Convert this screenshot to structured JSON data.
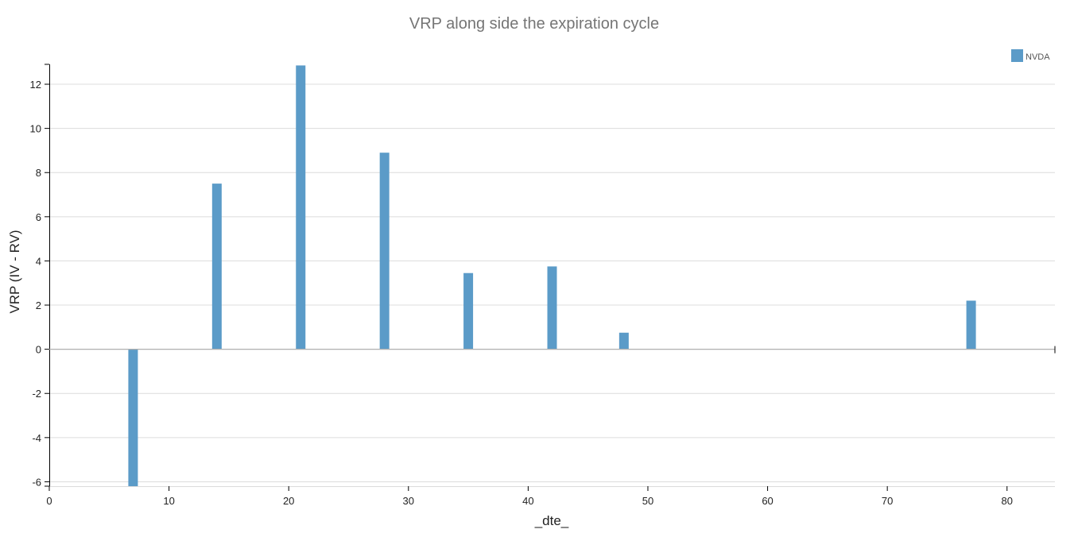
{
  "chart_data": {
    "type": "bar",
    "title": "VRP along side the expiration cycle",
    "xlabel": "_dte_",
    "ylabel": "VRP (IV - RV)",
    "xlim": [
      0,
      84
    ],
    "ylim": [
      -6.2,
      12.9
    ],
    "xticks": [
      0,
      10,
      20,
      30,
      40,
      50,
      60,
      70,
      80
    ],
    "yticks": [
      -6,
      -4,
      -2,
      0,
      2,
      4,
      6,
      8,
      10,
      12
    ],
    "grid": true,
    "legend_position": "top-right",
    "series": [
      {
        "name": "NVDA",
        "color": "#5b9bc8",
        "x": [
          7,
          14,
          21,
          28,
          35,
          42,
          48,
          77
        ],
        "values": [
          -6.2,
          7.5,
          12.85,
          8.9,
          3.45,
          3.75,
          0.75,
          2.2
        ]
      }
    ]
  }
}
